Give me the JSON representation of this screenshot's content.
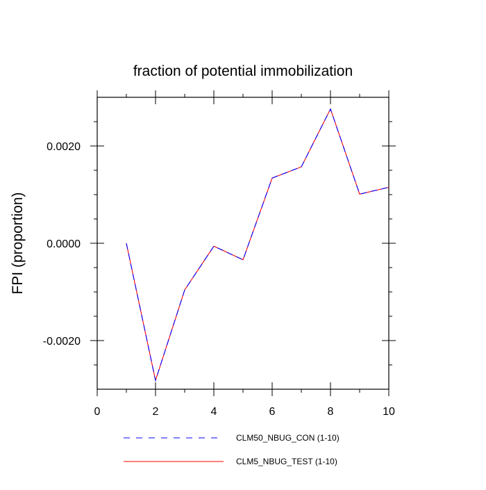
{
  "chart_data": {
    "type": "line",
    "title": "fraction of potential immobilization",
    "xlabel": "",
    "ylabel": "FPI  (proportion)",
    "xlim": [
      0,
      10
    ],
    "ylim": [
      -0.003,
      0.003
    ],
    "xticks": [
      0,
      2,
      4,
      6,
      8,
      10
    ],
    "xtick_labels": [
      "0",
      "2",
      "4",
      "6",
      "8",
      "10"
    ],
    "yticks": [
      -0.002,
      0.0,
      0.002
    ],
    "ytick_labels": [
      "-0.0020",
      "0.0000",
      "0.0020"
    ],
    "grid": false,
    "legend_position": "bottom",
    "x": [
      1,
      2,
      3,
      4,
      5,
      6,
      7,
      8,
      9,
      10
    ],
    "series": [
      {
        "name": "CLM50_NBUG_CON (1-10)",
        "color": "#0000ff",
        "line_style": "dashed",
        "values": [
          0.0,
          -0.00282,
          -0.00096,
          -6e-05,
          -0.00034,
          0.00134,
          0.00157,
          0.00276,
          0.00101,
          0.00115
        ]
      },
      {
        "name": "CLM5_NBUG_TEST (1-10)",
        "color": "#ff0000",
        "line_style": "solid",
        "values": [
          0.0,
          -0.00282,
          -0.00096,
          -6e-05,
          -0.00034,
          0.00134,
          0.00157,
          0.00276,
          0.00101,
          0.00115
        ]
      }
    ]
  }
}
